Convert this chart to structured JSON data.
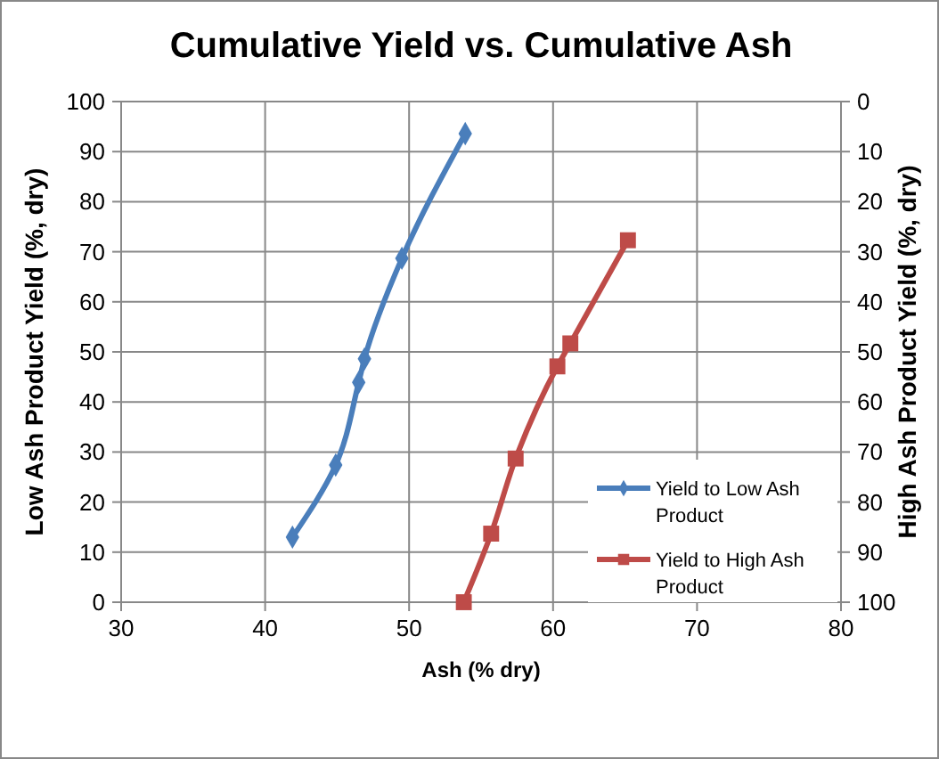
{
  "chart_data": {
    "type": "line",
    "title": "Cumulative Yield vs. Cumulative Ash",
    "xlabel": "Ash (% dry)",
    "ylabel": "Low Ash Product Yield (%, dry)",
    "y2label": "High Ash Product Yield (%, dry)",
    "xlim": [
      30,
      80
    ],
    "xticks": [
      30,
      40,
      50,
      60,
      70,
      80
    ],
    "ylim": [
      0,
      100
    ],
    "yticks": [
      0,
      10,
      20,
      30,
      40,
      50,
      60,
      70,
      80,
      90,
      100
    ],
    "y2lim": [
      100,
      0
    ],
    "y2ticks": [
      100,
      90,
      80,
      70,
      60,
      50,
      40,
      30,
      20,
      10,
      0
    ],
    "grid": true,
    "legend": "right",
    "series": [
      {
        "name": "Yield to Low Ash Product",
        "color": "#4a7ebb",
        "marker": "diamond",
        "x": [
          41.9,
          44.9,
          46.5,
          46.9,
          49.5,
          53.9
        ],
        "values": [
          13,
          27.4,
          43.9,
          48.6,
          68.7,
          93.6
        ]
      },
      {
        "name": "Yield to High Ash Product",
        "color": "#be4b48",
        "marker": "square",
        "axis": "y2",
        "x": [
          53.8,
          55.7,
          57.4,
          60.3,
          61.2,
          65.2
        ],
        "values": [
          100,
          86.3,
          71.3,
          52.9,
          48.3,
          27.7
        ]
      }
    ]
  }
}
